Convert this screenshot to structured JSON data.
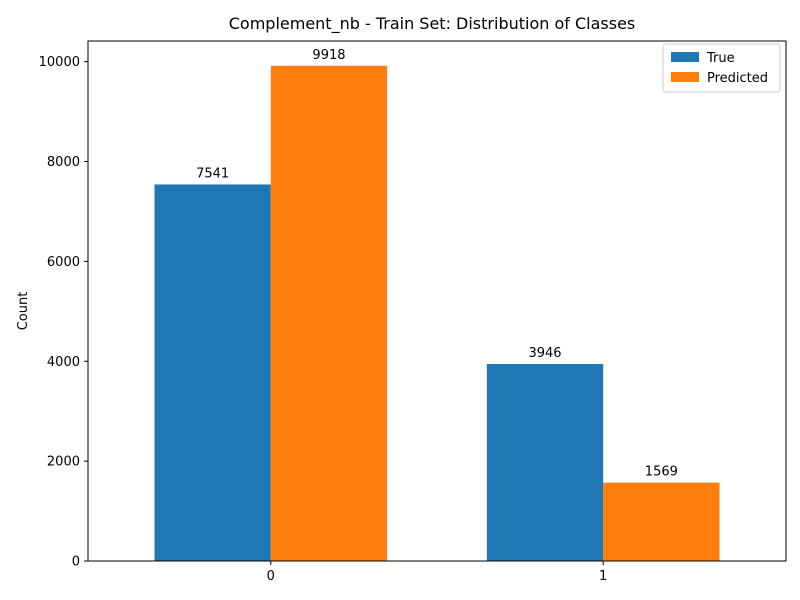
{
  "chart_data": {
    "type": "bar",
    "title": "Complement_nb - Train Set: Distribution of Classes",
    "xlabel": "",
    "ylabel": "Count",
    "categories": [
      "0",
      "1"
    ],
    "series": [
      {
        "name": "True",
        "values": [
          7541,
          3946
        ],
        "color": "#1f77b4"
      },
      {
        "name": "Predicted",
        "values": [
          9918,
          1569
        ],
        "color": "#ff7f0e"
      }
    ],
    "ylim": [
      0,
      10413.9
    ],
    "yticks": [
      0,
      2000,
      4000,
      6000,
      8000,
      10000
    ],
    "ytick_labels": [
      "0",
      "2000",
      "4000",
      "6000",
      "8000",
      "10000"
    ],
    "bar_labels": [
      [
        "7541",
        "3946"
      ],
      [
        "9918",
        "1569"
      ]
    ],
    "legend_position": "top-right",
    "grid": false
  }
}
